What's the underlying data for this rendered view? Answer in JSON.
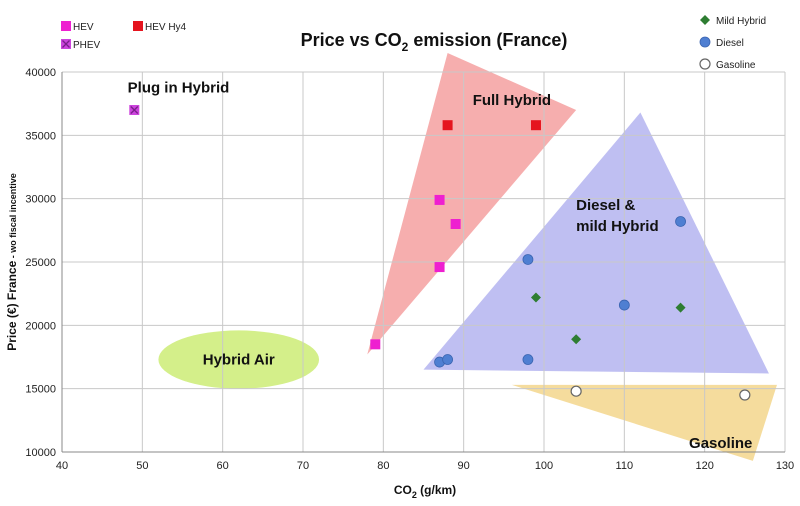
{
  "chart_data": {
    "type": "scatter",
    "title": {
      "main": "Price vs CO",
      "sub": "2",
      "rest": " emission (France)"
    },
    "xlabel": {
      "main": "CO",
      "sub": "2",
      "rest": " (g/km)"
    },
    "ylabel": "Price (€) France",
    "ylabel_note": " - wo fiscal incentive",
    "xlim": [
      40,
      130
    ],
    "ylim": [
      10000,
      40000
    ],
    "x_ticks": [
      "40",
      "50",
      "60",
      "70",
      "80",
      "90",
      "100",
      "110",
      "120",
      "130"
    ],
    "y_ticks": [
      "10000",
      "15000",
      "20000",
      "25000",
      "30000",
      "35000",
      "40000"
    ],
    "grid": true,
    "series": [
      {
        "name": "HEV",
        "marker": "square",
        "color": "#ee1fd0",
        "points": [
          [
            79,
            18500
          ],
          [
            87,
            24600
          ],
          [
            87,
            29900
          ],
          [
            89,
            28000
          ]
        ]
      },
      {
        "name": "HEV Hy4",
        "marker": "square",
        "color": "#e5141e",
        "points": [
          [
            88,
            35800
          ],
          [
            99,
            35800
          ]
        ]
      },
      {
        "name": "PHEV",
        "marker": "square-x",
        "color": "#cc44dd",
        "points": [
          [
            49,
            37000
          ]
        ]
      },
      {
        "name": "Mild Hybrid",
        "marker": "diamond",
        "color": "#2e7d32",
        "points": [
          [
            99,
            22200
          ],
          [
            104,
            18900
          ],
          [
            117,
            21400
          ]
        ]
      },
      {
        "name": "Diesel",
        "marker": "circle",
        "color": "#4f7fd2",
        "points": [
          [
            87,
            17100
          ],
          [
            88,
            17300
          ],
          [
            98,
            25200
          ],
          [
            98,
            17300
          ],
          [
            110,
            21600
          ],
          [
            117,
            28200
          ]
        ]
      },
      {
        "name": "Gasoline",
        "marker": "circle-open",
        "color": "#666666",
        "points": [
          [
            104,
            14800
          ],
          [
            125,
            14500
          ]
        ]
      }
    ],
    "regions": [
      {
        "name": "Full Hybrid",
        "shape": "polygon",
        "color": "#f4a0a0",
        "points": [
          [
            78,
            17700
          ],
          [
            88,
            41500
          ],
          [
            104,
            37000
          ]
        ],
        "label": "Full Hybrid",
        "label_at": [
          96,
          37800
        ]
      },
      {
        "name": "Diesel & mild Hybrid",
        "shape": "polygon",
        "color": "#b4b4f0",
        "points": [
          [
            85,
            16500
          ],
          [
            112,
            36800
          ],
          [
            128,
            16200
          ]
        ],
        "label_lines": [
          "Diesel &",
          "mild Hybrid"
        ],
        "label_at": [
          104,
          29100
        ]
      },
      {
        "name": "Gasoline",
        "shape": "polygon",
        "color": "#f3d68c",
        "points": [
          [
            96,
            15300
          ],
          [
            129,
            15300
          ],
          [
            126,
            9300
          ]
        ],
        "label": "Gasoline",
        "label_at": [
          122,
          10700
        ]
      },
      {
        "name": "Hybrid Air",
        "shape": "ellipse",
        "color": "#d4ef8a",
        "center": [
          62,
          17300
        ],
        "rx": 10,
        "ry": 2300,
        "label": "Hybrid Air",
        "label_at": [
          62,
          17300
        ]
      }
    ],
    "annotations": [
      {
        "text": "Plug in Hybrid",
        "at": [
          54.5,
          38400
        ]
      }
    ],
    "legend": {
      "left": [
        {
          "name": "HEV",
          "marker": "square",
          "color": "#ee1fd0"
        },
        {
          "name": "HEV Hy4",
          "marker": "square",
          "color": "#e5141e"
        },
        {
          "name": "PHEV",
          "marker": "square-x",
          "color": "#cc44dd"
        }
      ],
      "right": [
        {
          "name": "Mild Hybrid",
          "marker": "diamond",
          "color": "#2e7d32"
        },
        {
          "name": "Diesel",
          "marker": "circle",
          "color": "#4f7fd2"
        },
        {
          "name": "Gasoline",
          "marker": "circle-open",
          "color": "#666666"
        }
      ]
    }
  }
}
